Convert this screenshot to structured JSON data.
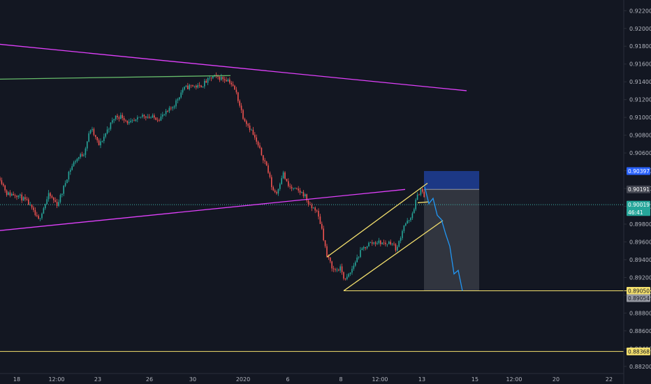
{
  "chart_data": {
    "type": "candlestick",
    "title": "",
    "xlabel": "",
    "ylabel": "",
    "ylim": [
      0.8812,
      0.9232
    ],
    "x_ticks": [
      "18",
      "12:00",
      "23",
      "26",
      "30",
      "2020",
      "6",
      "8",
      "12:00",
      "13",
      "15",
      "12:00",
      "20",
      "22"
    ],
    "y_ticks": [
      "0.92200",
      "0.92000",
      "0.91800",
      "0.91600",
      "0.91400",
      "0.91200",
      "0.91000",
      "0.90800",
      "0.90600",
      "0.90400",
      "0.90200",
      "0.90000",
      "0.89800",
      "0.89600",
      "0.89400",
      "0.89200",
      "0.89000",
      "0.88800",
      "0.88600",
      "0.88400",
      "0.88200"
    ],
    "grid": false,
    "price_path": [
      [
        0,
        0.9032
      ],
      [
        10,
        0.9014
      ],
      [
        25,
        0.9013
      ],
      [
        40,
        0.9004
      ],
      [
        55,
        0.8984
      ],
      [
        60,
        0.8994
      ],
      [
        70,
        0.9013
      ],
      [
        82,
        0.9002
      ],
      [
        90,
        0.9018
      ],
      [
        98,
        0.9038
      ],
      [
        108,
        0.9052
      ],
      [
        120,
        0.906
      ],
      [
        130,
        0.9088
      ],
      [
        142,
        0.9068
      ],
      [
        155,
        0.9088
      ],
      [
        165,
        0.9101
      ],
      [
        175,
        0.9101
      ],
      [
        185,
        0.9093
      ],
      [
        195,
        0.9096
      ],
      [
        205,
        0.9103
      ],
      [
        215,
        0.91
      ],
      [
        228,
        0.9099
      ],
      [
        240,
        0.9106
      ],
      [
        250,
        0.9115
      ],
      [
        262,
        0.9132
      ],
      [
        275,
        0.9136
      ],
      [
        285,
        0.9134
      ],
      [
        295,
        0.914
      ],
      [
        305,
        0.9146
      ],
      [
        318,
        0.9144
      ],
      [
        328,
        0.9142
      ],
      [
        338,
        0.9128
      ],
      [
        348,
        0.9101
      ],
      [
        360,
        0.9085
      ],
      [
        372,
        0.9063
      ],
      [
        382,
        0.9045
      ],
      [
        390,
        0.9019
      ],
      [
        396,
        0.9015
      ],
      [
        405,
        0.9038
      ],
      [
        412,
        0.9023
      ],
      [
        420,
        0.9019
      ],
      [
        428,
        0.9017
      ],
      [
        436,
        0.9013
      ],
      [
        444,
        0.8999
      ],
      [
        452,
        0.8997
      ],
      [
        460,
        0.8978
      ],
      [
        468,
        0.8944
      ],
      [
        478,
        0.8928
      ],
      [
        488,
        0.893
      ],
      [
        494,
        0.8916
      ],
      [
        502,
        0.8926
      ],
      [
        510,
        0.894
      ],
      [
        518,
        0.8951
      ],
      [
        528,
        0.8958
      ],
      [
        540,
        0.896
      ],
      [
        552,
        0.8958
      ],
      [
        560,
        0.896
      ],
      [
        568,
        0.8951
      ],
      [
        578,
        0.8979
      ],
      [
        588,
        0.8985
      ],
      [
        596,
        0.9008
      ],
      [
        603,
        0.9021
      ],
      [
        608,
        0.9007
      ]
    ],
    "projection": [
      [
        608,
        0.9022
      ],
      [
        614,
        0.9003
      ],
      [
        620,
        0.9009
      ],
      [
        626,
        0.899
      ],
      [
        632,
        0.8985
      ],
      [
        638,
        0.8969
      ],
      [
        644,
        0.8955
      ],
      [
        650,
        0.8924
      ],
      [
        656,
        0.8928
      ],
      [
        662,
        0.8905
      ]
    ],
    "trendlines": [
      {
        "kind": "resistance",
        "color": "#e040fb",
        "points": [
          [
            -10,
            0.9183
          ],
          [
            668,
            0.913
          ]
        ]
      },
      {
        "kind": "support",
        "color": "#e040fb",
        "points": [
          [
            -10,
            0.8972
          ],
          [
            580,
            0.9019
          ]
        ]
      },
      {
        "kind": "horizontal",
        "color": "#66bb6a",
        "points": [
          [
            0,
            0.9143
          ],
          [
            330,
            0.9147
          ]
        ]
      },
      {
        "kind": "channel-upper",
        "color": "#f4e06d",
        "points": [
          [
            468,
            0.8943
          ],
          [
            612,
            0.9026
          ]
        ]
      },
      {
        "kind": "channel-lower",
        "color": "#f4e06d",
        "points": [
          [
            492,
            0.8905
          ],
          [
            634,
            0.8984
          ]
        ]
      },
      {
        "kind": "channel-mid",
        "color": "#f4e06d",
        "points": [
          [
            598,
            0.9004
          ],
          [
            614,
            0.9005
          ]
        ]
      },
      {
        "kind": "target",
        "color": "#f4e06d",
        "points": [
          [
            492,
            0.8905
          ],
          [
            932,
            0.8905
          ]
        ]
      }
    ],
    "levels": [
      {
        "value": 0.90019,
        "style": "dotted",
        "color": "#3fb3a9"
      },
      {
        "value": 0.88368,
        "style": "solid",
        "color": "#f4e06d"
      }
    ],
    "position": {
      "entry": 0.90191,
      "stop": 0.90397,
      "target": 0.8905,
      "x_range": [
        607,
        686
      ],
      "stop_color": "#2962ff",
      "target_color": "#787b86"
    },
    "price_tags": [
      {
        "label": "0.90397",
        "value": 0.90397,
        "bg": "#2962ff",
        "fg": "#ffffff"
      },
      {
        "label": "0.90191",
        "value": 0.90191,
        "bg": "#434651",
        "fg": "#ffffff"
      },
      {
        "label": "0.90019",
        "value": 0.90019,
        "bg": "#26a69a",
        "fg": "#ffffff"
      },
      {
        "label": "46:41",
        "value": 0.89935,
        "bg": "#26a69a",
        "fg": "#ffffff"
      },
      {
        "label": "0.89050",
        "value": 0.8905,
        "bg": "#f4e06d",
        "fg": "#131722"
      },
      {
        "label": "0.89054",
        "value": 0.88968,
        "bg": "#9598a1",
        "fg": "#131722"
      },
      {
        "label": "0.88368",
        "value": 0.88368,
        "bg": "#f4e06d",
        "fg": "#131722"
      }
    ],
    "colors": {
      "background": "#131722",
      "candle_up": "#26a69a",
      "candle_down": "#ef5350",
      "projection": "#2196f3",
      "axis_text": "#b2b5be"
    }
  }
}
